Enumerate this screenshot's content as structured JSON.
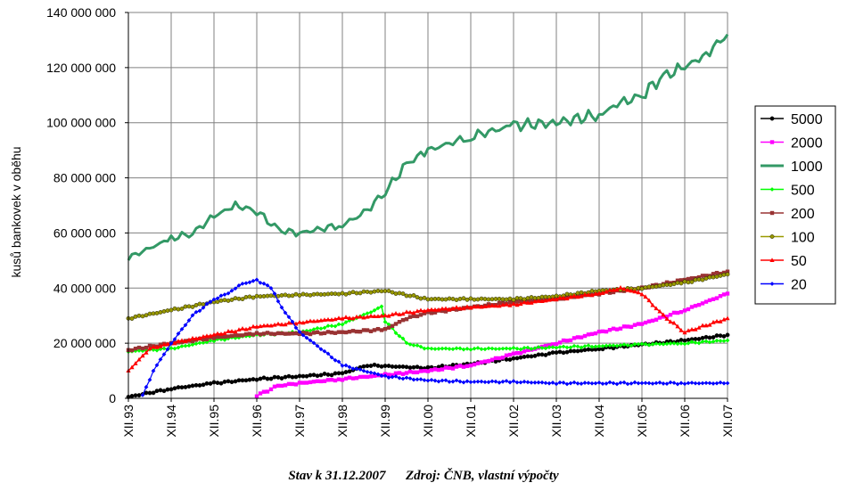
{
  "chart_data": {
    "type": "line",
    "title": "",
    "ylabel": "kusů bankovek v oběhu",
    "xlabel": "",
    "ylim": [
      0,
      140000000
    ],
    "xlim": [
      1993.917,
      2007.917
    ],
    "y_ticks": [
      0,
      20000000,
      40000000,
      60000000,
      80000000,
      100000000,
      120000000,
      140000000
    ],
    "y_tick_labels": [
      "0",
      "20 000 000",
      "40 000 000",
      "60 000 000",
      "80 000 000",
      "100 000 000",
      "120 000 000",
      "140 000 000"
    ],
    "x_ticks": [
      1993.917,
      1994.917,
      1995.917,
      1996.917,
      1997.917,
      1998.917,
      1999.917,
      2000.917,
      2001.917,
      2002.917,
      2003.917,
      2004.917,
      2005.917,
      2006.917,
      2007.917
    ],
    "x_tick_labels": [
      "XII.93",
      "XII.94",
      "XII.95",
      "XII.96",
      "XII.97",
      "XII.98",
      "XII.99",
      "XII.00",
      "XII.01",
      "XII.02",
      "XII.03",
      "XII.04",
      "XII.05",
      "XII.06",
      "XII.07"
    ],
    "grid": true,
    "legend_position": "right",
    "series": [
      {
        "name": "5000",
        "color": "#000000",
        "marker": "circle",
        "x": [
          1993.917,
          1994.917,
          1995.917,
          1996.917,
          1997.917,
          1998.917,
          1999.5,
          2000.917,
          2001.917,
          2002.917,
          2003.917,
          2004.917,
          2005.917,
          2006.917,
          2007.917
        ],
        "y": [
          500000,
          3500000,
          5500000,
          7000000,
          8000000,
          9000000,
          12000000,
          11000000,
          12500000,
          14500000,
          16500000,
          18000000,
          19500000,
          21000000,
          23000000
        ]
      },
      {
        "name": "2000",
        "color": "#ff00ff",
        "marker": "square",
        "x": [
          1996.917,
          1997.417,
          1997.917,
          1998.917,
          1999.917,
          2000.917,
          2001.917,
          2002.917,
          2003.917,
          2004.917,
          2005.917,
          2006.917,
          2007.917
        ],
        "y": [
          1000000,
          4500000,
          5500000,
          7000000,
          8500000,
          10000000,
          12000000,
          16000000,
          20000000,
          24000000,
          27000000,
          32000000,
          38000000
        ]
      },
      {
        "name": "1000",
        "color": "#339966",
        "marker": "none",
        "x": [
          1993.917,
          1994.917,
          1995.417,
          1995.917,
          1996.417,
          1996.917,
          1997.417,
          1997.917,
          1998.917,
          1999.417,
          1999.917,
          2000.417,
          2000.917,
          2001.917,
          2002.917,
          2003.917,
          2004.917,
          2005.417,
          2005.917,
          2006.417,
          2006.917,
          2007.417,
          2007.917
        ],
        "y": [
          51000000,
          58000000,
          60000000,
          66000000,
          70000000,
          68000000,
          61000000,
          60000000,
          63000000,
          67000000,
          75000000,
          85000000,
          90000000,
          95000000,
          99000000,
          100000000,
          103000000,
          107000000,
          110000000,
          117000000,
          120000000,
          125000000,
          132000000
        ]
      },
      {
        "name": "500",
        "color": "#00ff00",
        "marker": "diamond",
        "x": [
          1993.917,
          1994.917,
          1995.917,
          1996.917,
          1997.917,
          1998.917,
          1999.833,
          1999.917,
          2000.417,
          2000.917,
          2001.917,
          2002.917,
          2003.917,
          2004.917,
          2005.917,
          2006.917,
          2007.917
        ],
        "y": [
          17000000,
          18000000,
          21000000,
          23000000,
          24000000,
          27000000,
          33000000,
          28000000,
          20000000,
          18000000,
          18000000,
          18000000,
          18500000,
          19000000,
          19500000,
          20000000,
          21000000
        ]
      },
      {
        "name": "200",
        "color": "#993333",
        "marker": "square",
        "x": [
          1993.917,
          1994.917,
          1995.917,
          1996.917,
          1997.917,
          1998.917,
          1999.917,
          2000.417,
          2000.917,
          2001.917,
          2002.917,
          2003.917,
          2004.917,
          2005.917,
          2006.917,
          2007.917
        ],
        "y": [
          17500000,
          20000000,
          22000000,
          23500000,
          23500000,
          24000000,
          25000000,
          29000000,
          31000000,
          33000000,
          35000000,
          36000000,
          38000000,
          40000000,
          43000000,
          46000000
        ]
      },
      {
        "name": "100",
        "color": "#999900",
        "marker": "circle",
        "x": [
          1993.917,
          1994.917,
          1995.917,
          1996.917,
          1997.917,
          1998.917,
          1999.917,
          2000.917,
          2001.917,
          2002.917,
          2003.917,
          2004.917,
          2005.917,
          2006.917,
          2007.917
        ],
        "y": [
          29000000,
          32000000,
          35000000,
          37000000,
          37500000,
          38000000,
          39000000,
          36000000,
          36000000,
          36000000,
          37000000,
          39000000,
          40000000,
          42000000,
          45000000
        ]
      },
      {
        "name": "50",
        "color": "#ff0000",
        "marker": "triangle",
        "x": [
          1993.917,
          1994.417,
          1994.917,
          1995.917,
          1996.917,
          1997.917,
          1998.917,
          1999.917,
          2000.917,
          2001.917,
          2002.917,
          2003.917,
          2004.917,
          2005.417,
          2005.917,
          2006.417,
          2006.917,
          2007.917
        ],
        "y": [
          10000000,
          18000000,
          20000000,
          23000000,
          26000000,
          27500000,
          29000000,
          30000000,
          32000000,
          33000000,
          34000000,
          36000000,
          38000000,
          40000000,
          38000000,
          30000000,
          24000000,
          29000000
        ]
      },
      {
        "name": "20",
        "color": "#0000ff",
        "marker": "diamond",
        "x": [
          1994.25,
          1994.5,
          1994.917,
          1995.417,
          1995.917,
          1996.25,
          1996.5,
          1996.917,
          1997.25,
          1997.5,
          1997.917,
          1998.917,
          1999.917,
          2000.917,
          2001.917,
          2002.917,
          2003.917,
          2004.917,
          2005.917,
          2006.917,
          2007.917
        ],
        "y": [
          1000000,
          10000000,
          20000000,
          30000000,
          36000000,
          38000000,
          41000000,
          43000000,
          40000000,
          33000000,
          24000000,
          12000000,
          8000000,
          6500000,
          6000000,
          6000000,
          5500000,
          5500000,
          5500000,
          5500000,
          5500000
        ]
      }
    ]
  },
  "footer": {
    "stav": "Stav k 31.12.2007",
    "zdroj": "Zdroj: ČNB, vlastní výpočty"
  }
}
